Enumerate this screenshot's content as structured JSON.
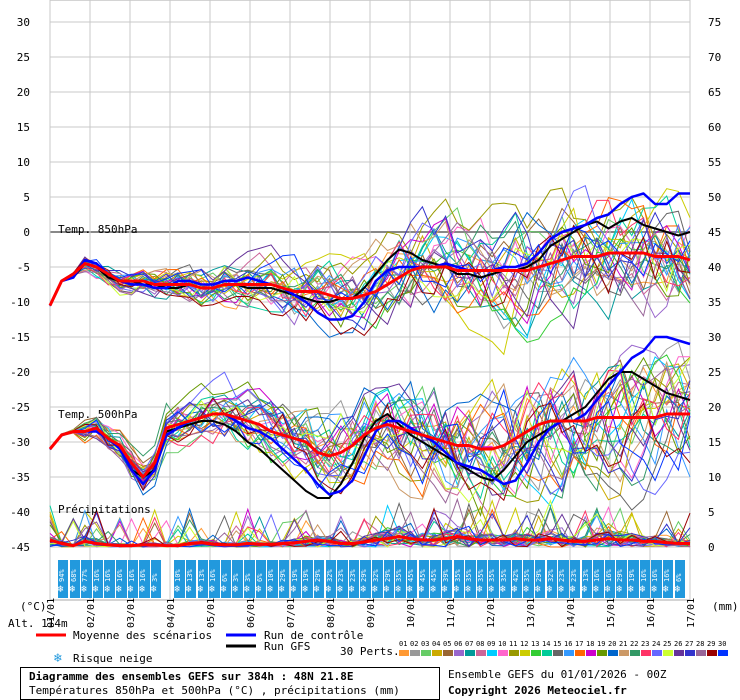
{
  "chart_data": {
    "type": "line",
    "title": "Diagramme des ensembles GEFS sur 384h : 48N 21.8E",
    "subtitle": "Températures 850hPa et 500hPa (°C) , précipitations (mm)",
    "left_axis": {
      "unit": "(°C)",
      "ticks": [
        30,
        25,
        20,
        15,
        10,
        5,
        0,
        -5,
        -10,
        -15,
        -20,
        -25,
        -30,
        -35,
        -40,
        -45
      ],
      "range": [
        -45,
        30
      ]
    },
    "right_axis": {
      "unit": "(mm)",
      "ticks": [
        75,
        70,
        65,
        60,
        55,
        50,
        45,
        40,
        35,
        30,
        25,
        20,
        15,
        10,
        5,
        0
      ],
      "range": [
        0,
        75
      ]
    },
    "x_ticks": [
      "01/01",
      "02/01",
      "03/01",
      "04/01",
      "05/01",
      "06/01",
      "07/01",
      "08/01",
      "09/01",
      "10/01",
      "11/01",
      "12/01",
      "13/01",
      "14/01",
      "15/01",
      "16/01",
      "17/01"
    ],
    "grid": true,
    "panel_labels": {
      "t850": "Temp. 850hPa",
      "t500": "Temp. 500hPa",
      "precip": "Précipitations"
    },
    "altitude": "Alt. 114m",
    "series_850": {
      "mean": [
        -10.5,
        -7,
        -6,
        -4.5,
        -5,
        -6,
        -7,
        -7,
        -7,
        -7.5,
        -7.5,
        -7.5,
        -7.5,
        -8,
        -8,
        -7.5,
        -7.5,
        -7.5,
        -7.5,
        -7.5,
        -8,
        -8.5,
        -8.5,
        -8.5,
        -9,
        -9.5,
        -9.5,
        -9,
        -8.5,
        -7.5,
        -6.5,
        -5.5,
        -5,
        -5,
        -5,
        -5.5,
        -5.5,
        -5.5,
        -5.5,
        -5.5,
        -5.5,
        -5.5,
        -5,
        -4.5,
        -4,
        -3.5,
        -3.5,
        -3.5,
        -3,
        -3,
        -3,
        -3,
        -3.5,
        -3.5,
        -3.5,
        -4
      ],
      "control": [
        -10.5,
        -7,
        -6.5,
        -4,
        -4.5,
        -6,
        -7,
        -7.5,
        -7.5,
        -8,
        -8,
        -7,
        -7,
        -7.5,
        -7.5,
        -7,
        -7,
        -6.5,
        -7,
        -7.5,
        -8,
        -9,
        -10,
        -11.5,
        -12.5,
        -12.5,
        -12,
        -10,
        -7,
        -5.5,
        -5,
        -5,
        -5,
        -5,
        -4.5,
        -5,
        -5.5,
        -5.5,
        -5.5,
        -5,
        -5,
        -4.5,
        -3,
        -1,
        0,
        0.5,
        1,
        2,
        2.5,
        4,
        5,
        5.5,
        4,
        4,
        5.5,
        5.5
      ],
      "gfs": [
        -10.5,
        -7,
        -6.5,
        -4.5,
        -5,
        -6.5,
        -7,
        -7,
        -7.5,
        -7.5,
        -8,
        -8,
        -7.5,
        -8,
        -8,
        -7.5,
        -7.5,
        -8,
        -8,
        -8,
        -8.5,
        -9,
        -9.5,
        -10,
        -10,
        -9.5,
        -9.5,
        -8,
        -6,
        -4,
        -2.5,
        -3,
        -4,
        -4.5,
        -5,
        -6,
        -6,
        -6.5,
        -6,
        -5.5,
        -5.5,
        -5,
        -4,
        -2,
        -1,
        0,
        1,
        1.5,
        0.5,
        1.5,
        2,
        1,
        0.5,
        0,
        -0.5,
        0
      ]
    },
    "series_500": {
      "mean": [
        -31,
        -29,
        -28.5,
        -28.5,
        -28,
        -29.5,
        -30.5,
        -33,
        -35,
        -33,
        -28,
        -27.5,
        -27,
        -26.5,
        -26,
        -26,
        -26.5,
        -27,
        -27.5,
        -28.5,
        -29,
        -29.5,
        -30,
        -31.5,
        -32,
        -31.5,
        -30.5,
        -29,
        -28,
        -27.5,
        -28,
        -28.5,
        -29,
        -29.5,
        -30,
        -30.5,
        -30.5,
        -31,
        -31,
        -30.5,
        -29.5,
        -28.5,
        -27.5,
        -27,
        -27,
        -27,
        -27,
        -26.5,
        -26.5,
        -26.5,
        -26.5,
        -26.5,
        -26.5,
        -26,
        -26,
        -26
      ],
      "control": [
        -31,
        -29,
        -28.5,
        -28.5,
        -28.5,
        -29.5,
        -31,
        -34,
        -36,
        -34,
        -29,
        -28,
        -27,
        -26.5,
        -26,
        -26,
        -27,
        -28,
        -28.5,
        -29.5,
        -31,
        -32.5,
        -34,
        -36,
        -37.5,
        -37,
        -35.5,
        -32,
        -28.5,
        -27,
        -27,
        -28,
        -29,
        -30,
        -31.5,
        -33,
        -33.5,
        -34,
        -35,
        -36,
        -35.5,
        -33,
        -30,
        -28,
        -27,
        -27,
        -26,
        -24,
        -22,
        -20,
        -18,
        -17,
        -15,
        -15,
        -15.5,
        -16
      ],
      "gfs": [
        -31,
        -29,
        -28.5,
        -28.5,
        -28.5,
        -29.5,
        -31,
        -34,
        -35,
        -34,
        -28.5,
        -28,
        -27.5,
        -27,
        -27,
        -27.5,
        -28.5,
        -30,
        -31,
        -32.5,
        -34,
        -35.5,
        -37,
        -38,
        -38,
        -36,
        -33,
        -29.5,
        -27,
        -26,
        -27.5,
        -29,
        -30,
        -31,
        -32,
        -33,
        -34,
        -35,
        -35.5,
        -34,
        -32,
        -30,
        -29,
        -28,
        -27,
        -26,
        -25,
        -23,
        -21,
        -20,
        -20,
        -21,
        -22,
        -23,
        -23.5,
        -24
      ]
    },
    "series_precip_mean_mm": [
      1,
      0.5,
      0.2,
      0.8,
      0.5,
      0.3,
      0.2,
      0.2,
      0.3,
      0.3,
      0.2,
      0.2,
      0.5,
      0.6,
      0.4,
      0.3,
      0.3,
      0.5,
      0.4,
      0.4,
      0.5,
      0.6,
      0.8,
      1,
      0.8,
      0.5,
      0.5,
      0.7,
      1,
      1.2,
      1.5,
      1.2,
      1,
      1,
      1.2,
      1.5,
      1.2,
      1,
      1,
      1,
      1.2,
      1,
      1,
      1.2,
      1,
      0.8,
      0.8,
      1,
      1.2,
      1,
      1,
      0.8,
      0.8,
      0.6,
      0.5,
      0.5
    ],
    "snow_risk_row1": [
      "",
      "94%",
      "68%",
      "",
      "",
      "",
      "",
      "",
      "",
      "",
      "",
      "10%",
      "13%",
      "13%",
      "16%",
      "6%",
      "3%",
      "3%",
      "6%",
      "10%",
      "29%",
      "19%",
      "19%",
      "29%",
      "32%",
      "23%",
      "23%",
      "29%",
      "32%",
      "29%",
      "35%",
      "45%",
      "45%",
      "45%",
      "39%",
      "35%",
      "35%",
      "35%",
      "35%",
      "35%",
      "42%",
      "35%",
      "29%",
      "32%",
      "23%",
      "23%",
      "13%",
      "16%",
      "16%",
      "29%",
      "19%",
      "16%",
      "16%",
      "16%",
      "6%",
      ""
    ],
    "snow_risk_row2": [
      "",
      "",
      "",
      "77%",
      "16%",
      "16%",
      "16%",
      "16%",
      "16%",
      "3%",
      "",
      "",
      "",
      "",
      "",
      "",
      "",
      "",
      "",
      "",
      "",
      "",
      "",
      "",
      "",
      "",
      "",
      "",
      "",
      "",
      "",
      "",
      "",
      "",
      "",
      "",
      "",
      "",
      "",
      "",
      "",
      "",
      "",
      "",
      "",
      "",
      "",
      "",
      "",
      "",
      "",
      "",
      "",
      "",
      "",
      ""
    ],
    "members_label": "30 Perts.",
    "member_numbers": [
      "01",
      "02",
      "03",
      "04",
      "05",
      "06",
      "07",
      "08",
      "09",
      "10",
      "11",
      "12",
      "13",
      "14",
      "15",
      "16",
      "17",
      "18",
      "19",
      "20",
      "21",
      "22",
      "23",
      "24",
      "25",
      "26",
      "27",
      "28",
      "29",
      "30"
    ],
    "member_colors": [
      "#ff9933",
      "#999999",
      "#66cc66",
      "#ccaa00",
      "#996633",
      "#9966cc",
      "#009999",
      "#cc6699",
      "#00ccff",
      "#ff66cc",
      "#999900",
      "#cccc00",
      "#33cc33",
      "#00cc99",
      "#666666",
      "#3399ff",
      "#ff6600",
      "#cc00cc",
      "#669900",
      "#0066cc",
      "#cc9966",
      "#339966",
      "#ff3366",
      "#6666ff",
      "#ccff33",
      "#663399",
      "#3333cc",
      "#996699",
      "#990000",
      "#0033ff"
    ],
    "colors": {
      "mean": "#ff0000",
      "control": "#0000ff",
      "gfs": "#000000",
      "snow_band": "#2299dd"
    }
  },
  "legend": {
    "mean": "Moyenne des scénarios",
    "control": "Run de contrôle",
    "gfs": "Run GFS",
    "snow": "Risque neige"
  },
  "footer": {
    "title": "Diagramme des ensembles GEFS sur 384h : 48N 21.8E",
    "subtitle": "Températures 850hPa et 500hPa (°C) , précipitations (mm)",
    "run": "Ensemble GEFS du 01/01/2026 - 00Z",
    "copyright": "Copyright 2026 Meteociel.fr"
  }
}
